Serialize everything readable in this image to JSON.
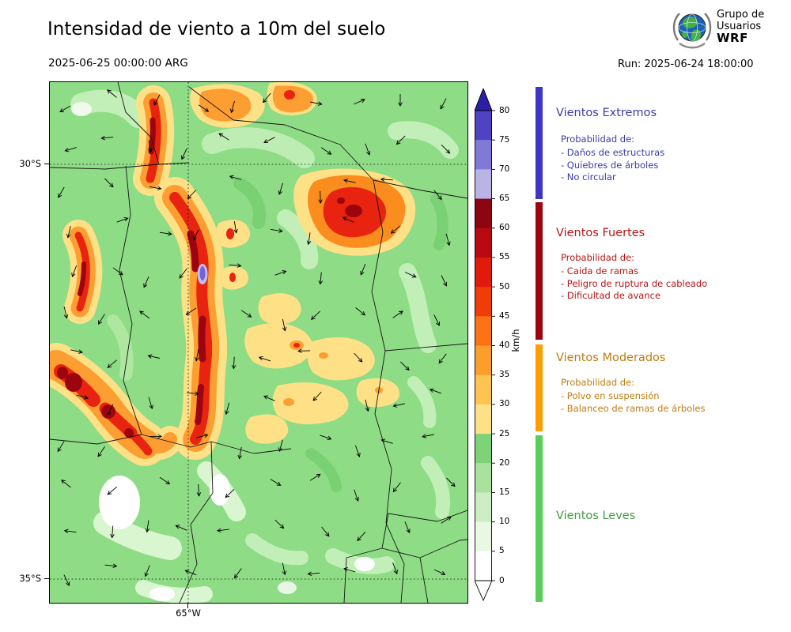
{
  "header": {
    "title": "Intensidad de viento a 10m del suelo",
    "valid_datetime": "2025-06-25 00:00:00 ARG",
    "run_label": "Run: 2025-06-24 18:00:00",
    "logo": {
      "line1": "Grupo de",
      "line2": "Usuarios",
      "line3": "WRF"
    }
  },
  "map_axes": {
    "lat_labels": [
      "30°S",
      "35°S"
    ],
    "lon_label": "65°W"
  },
  "colorbar": {
    "unit": "km/h",
    "tick_labels": [
      "80",
      "75",
      "70",
      "65",
      "60",
      "55",
      "50",
      "45",
      "40",
      "35",
      "30",
      "25",
      "20",
      "15",
      "10",
      "5",
      "0"
    ],
    "segment_colors_bottom_to_top": [
      "#ffffff",
      "#e8f8e2",
      "#cdeec4",
      "#a9e29c",
      "#7fd377",
      "#fee187",
      "#fdc44f",
      "#fd9e2a",
      "#fc7214",
      "#f23c08",
      "#e01b0c",
      "#b80a10",
      "#8c0612",
      "#b9b3e6",
      "#8279d6",
      "#4f43c4"
    ],
    "over_arrow_color": "#2b1fa8",
    "under_arrow_color": "#ffffff"
  },
  "legend": {
    "sections": [
      {
        "title": "Vientos Extremos",
        "bar_color": "#3d35c4",
        "text_color": "#3b3bab",
        "subtitle": "Probabilidad de:",
        "items": [
          "- Daños de estructuras",
          "- Quiebres de árboles",
          "- No circular"
        ]
      },
      {
        "title": "Vientos Fuertes",
        "bar_color": "#9c0410",
        "text_color": "#b51616",
        "subtitle": "Probabilidad de:",
        "items": [
          "- Caida de ramas",
          "- Peligro de ruptura de cableado",
          "- Dificultad de avance"
        ]
      },
      {
        "title": "Vientos Moderados",
        "bar_color": "#ff9d00",
        "text_color": "#c07c10",
        "subtitle": "Probabilidad de:",
        "items": [
          "- Polvo en suspensión",
          "- Balanceo de ramas de árboles"
        ]
      },
      {
        "title": "Vientos Leves",
        "bar_color": "#58d058",
        "text_color": "#3f9c3f",
        "subtitle": "",
        "items": []
      }
    ]
  }
}
